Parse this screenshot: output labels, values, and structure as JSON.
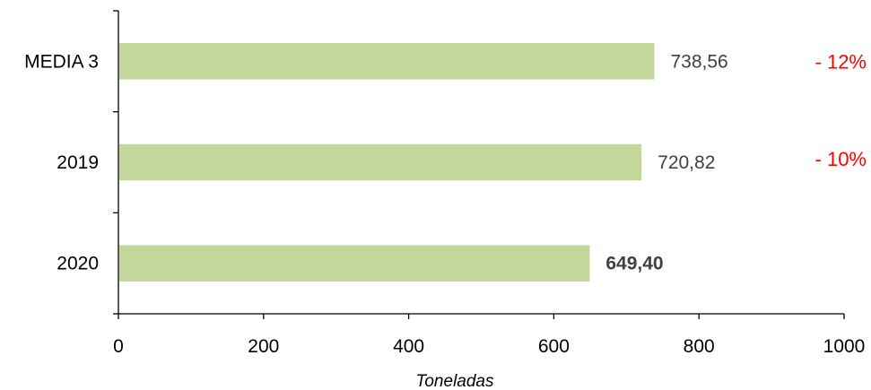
{
  "chart_data": {
    "type": "bar",
    "orientation": "horizontal",
    "categories": [
      "MEDIA 3",
      "2019",
      "2020"
    ],
    "values": [
      738.56,
      720.82,
      649.4
    ],
    "value_labels": [
      "738,56",
      "720,82",
      "649,40"
    ],
    "value_label_bold": [
      false,
      false,
      true
    ],
    "change_labels": [
      "- 12%",
      "- 10%",
      ""
    ],
    "xlabel": "Toneladas",
    "xlim": [
      0,
      1000
    ],
    "xticks": [
      0,
      200,
      400,
      600,
      800,
      1000
    ],
    "xtick_labels": [
      "0",
      "200",
      "400",
      "600",
      "800",
      "1000"
    ],
    "grid": false,
    "legend": "none",
    "bar_color": "#c4d79b",
    "change_color": "#ff0000"
  }
}
